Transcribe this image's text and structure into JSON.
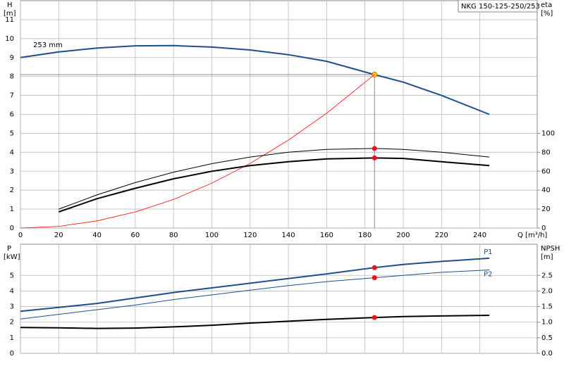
{
  "chart_data": [
    {
      "type": "line",
      "title": "NKG 150-125-250/253",
      "annotation": "253 mm",
      "ylabel": "H",
      "yunit": "[m]",
      "y2label": "eta",
      "y2unit": "[%]",
      "xlabel": "Q [m³/h]",
      "x": [
        0,
        20,
        40,
        60,
        80,
        100,
        120,
        140,
        160,
        185,
        200,
        220,
        245
      ],
      "xlim": [
        0,
        270
      ],
      "xticks": [
        0,
        20,
        40,
        60,
        80,
        100,
        120,
        140,
        160,
        180,
        200,
        220,
        240
      ],
      "ylim": [
        0,
        12
      ],
      "yticks": [
        0,
        1,
        2,
        3,
        4,
        5,
        6,
        7,
        8,
        9,
        10,
        11
      ],
      "y2lim": [
        0,
        240
      ],
      "y2ticks": [
        0,
        20,
        40,
        60,
        80,
        100
      ],
      "grid": true,
      "marker_x": 185,
      "series": [
        {
          "color": "#1f4e8c",
          "width": 2,
          "axis": "y",
          "marker_color": "#ffd400",
          "values": [
            9.0,
            9.3,
            9.5,
            9.62,
            9.63,
            9.55,
            9.4,
            9.15,
            8.8,
            8.1,
            7.7,
            7.0,
            6.0
          ]
        },
        {
          "color": "#ff0000",
          "width": 0.8,
          "axis": "y",
          "values": [
            0,
            0.09,
            0.38,
            0.85,
            1.51,
            2.37,
            3.41,
            4.64,
            6.06,
            8.1,
            null,
            null,
            null
          ]
        },
        {
          "color": "#000000",
          "width": 1,
          "axis": "y2",
          "marker_color": "#e8141c",
          "values": [
            null,
            20,
            35,
            48,
            59,
            68,
            75,
            80,
            83,
            84,
            83,
            80,
            75
          ]
        },
        {
          "color": "#000000",
          "width": 2,
          "axis": "y2",
          "marker_color": "#e8141c",
          "values": [
            null,
            17,
            31,
            42,
            52,
            60,
            66,
            70,
            73,
            74,
            73.5,
            70,
            66
          ]
        }
      ]
    },
    {
      "type": "line",
      "ylabel": "P",
      "yunit": "[kW]",
      "y2label": "NPSH",
      "y2unit": "[m]",
      "x": [
        0,
        20,
        40,
        60,
        80,
        100,
        120,
        140,
        160,
        185,
        200,
        220,
        245
      ],
      "xlim": [
        0,
        270
      ],
      "xticks": [
        0,
        20,
        40,
        60,
        80,
        100,
        120,
        140,
        160,
        180,
        200,
        220,
        240
      ],
      "ylim": [
        0,
        7
      ],
      "yticks": [
        0,
        1,
        2,
        3,
        4,
        5
      ],
      "y2lim": [
        0,
        3.5
      ],
      "y2ticks": [
        {
          "value": 0,
          "label": "0.0"
        },
        0.5,
        {
          "value": 1,
          "label": "1.0"
        },
        1.5,
        {
          "value": 2,
          "label": "2.0"
        },
        2.5
      ],
      "grid": true,
      "marker_x": 185,
      "series": [
        {
          "name": "P1",
          "color": "#1f4e8c",
          "width": 2,
          "axis": "y",
          "marker_color": "#e8141c",
          "values": [
            2.7,
            2.95,
            3.2,
            3.55,
            3.9,
            4.2,
            4.5,
            4.8,
            5.1,
            5.5,
            5.7,
            5.9,
            6.1
          ]
        },
        {
          "name": "P2",
          "color": "#1f4e8c",
          "width": 1,
          "axis": "y",
          "marker_color": "#e8141c",
          "values": [
            2.2,
            2.5,
            2.8,
            3.1,
            3.45,
            3.75,
            4.05,
            4.35,
            4.6,
            4.85,
            5.0,
            5.2,
            5.35
          ]
        },
        {
          "color": "#000000",
          "width": 2,
          "axis": "y2",
          "marker_color": "#e8141c",
          "values": [
            0.83,
            0.82,
            0.8,
            0.81,
            0.85,
            0.9,
            0.97,
            1.03,
            1.09,
            1.15,
            1.18,
            1.2,
            1.22
          ]
        }
      ]
    }
  ]
}
